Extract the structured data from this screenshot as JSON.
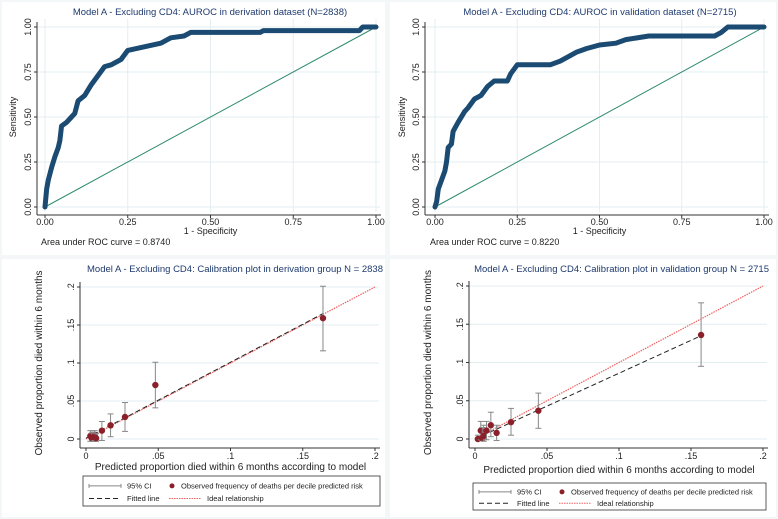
{
  "colors": {
    "roc": "#1b4a72",
    "ref": "#2e8b6e",
    "point": "#8b1f2a",
    "ci": "#888888",
    "fitted": "#222222",
    "ideal": "#f06060",
    "grid": "#e3eef0"
  },
  "chart_data": [
    {
      "type": "line",
      "title": "Model A - Excluding CD4: AUROC in derivation dataset (N=2838)",
      "xlabel": "1 - Specificity",
      "ylabel": "Sensitivity",
      "xlim": [
        0,
        1
      ],
      "ylim": [
        0,
        1
      ],
      "xticks": [
        "0.00",
        "0.25",
        "0.50",
        "0.75",
        "1.00"
      ],
      "yticks": [
        "0.00",
        "0.25",
        "0.50",
        "0.75",
        "1.00"
      ],
      "note": "Area under ROC curve = 0.8740",
      "roc": [
        [
          0,
          0
        ],
        [
          0.005,
          0.1
        ],
        [
          0.01,
          0.15
        ],
        [
          0.02,
          0.22
        ],
        [
          0.03,
          0.28
        ],
        [
          0.04,
          0.33
        ],
        [
          0.045,
          0.37
        ],
        [
          0.05,
          0.45
        ],
        [
          0.065,
          0.47
        ],
        [
          0.08,
          0.5
        ],
        [
          0.09,
          0.52
        ],
        [
          0.1,
          0.59
        ],
        [
          0.12,
          0.62
        ],
        [
          0.14,
          0.68
        ],
        [
          0.16,
          0.73
        ],
        [
          0.18,
          0.78
        ],
        [
          0.2,
          0.79
        ],
        [
          0.23,
          0.82
        ],
        [
          0.25,
          0.87
        ],
        [
          0.3,
          0.89
        ],
        [
          0.35,
          0.91
        ],
        [
          0.38,
          0.94
        ],
        [
          0.42,
          0.95
        ],
        [
          0.44,
          0.97
        ],
        [
          0.65,
          0.97
        ],
        [
          0.66,
          0.98
        ],
        [
          0.95,
          0.98
        ],
        [
          0.96,
          1.0
        ],
        [
          1,
          1
        ]
      ],
      "reference": [
        [
          0,
          0
        ],
        [
          1,
          1
        ]
      ]
    },
    {
      "type": "line",
      "title": "Model A - Excluding CD4: AUROC in validation dataset (N=2715)",
      "xlabel": "1 - Specificity",
      "ylabel": "Sensitivity",
      "xlim": [
        0,
        1
      ],
      "ylim": [
        0,
        1
      ],
      "xticks": [
        "0.00",
        "0.25",
        "0.50",
        "0.75",
        "1.00"
      ],
      "yticks": [
        "0.00",
        "0.25",
        "0.50",
        "0.75",
        "1.00"
      ],
      "note": "Area under ROC curve = 0.8220",
      "roc": [
        [
          0,
          0
        ],
        [
          0.005,
          0.03
        ],
        [
          0.01,
          0.1
        ],
        [
          0.02,
          0.15
        ],
        [
          0.03,
          0.2
        ],
        [
          0.035,
          0.25
        ],
        [
          0.04,
          0.33
        ],
        [
          0.05,
          0.35
        ],
        [
          0.055,
          0.42
        ],
        [
          0.07,
          0.47
        ],
        [
          0.09,
          0.53
        ],
        [
          0.1,
          0.55
        ],
        [
          0.12,
          0.6
        ],
        [
          0.14,
          0.62
        ],
        [
          0.16,
          0.67
        ],
        [
          0.18,
          0.7
        ],
        [
          0.22,
          0.7
        ],
        [
          0.23,
          0.74
        ],
        [
          0.25,
          0.79
        ],
        [
          0.35,
          0.79
        ],
        [
          0.38,
          0.81
        ],
        [
          0.41,
          0.84
        ],
        [
          0.43,
          0.86
        ],
        [
          0.46,
          0.88
        ],
        [
          0.5,
          0.9
        ],
        [
          0.55,
          0.91
        ],
        [
          0.58,
          0.93
        ],
        [
          0.65,
          0.95
        ],
        [
          0.85,
          0.95
        ],
        [
          0.87,
          0.97
        ],
        [
          0.89,
          1.0
        ],
        [
          1,
          1
        ]
      ],
      "reference": [
        [
          0,
          0
        ],
        [
          1,
          1
        ]
      ]
    },
    {
      "type": "scatter",
      "title": "Model A - Excluding CD4: Calibration plot in derivation group N = 2838",
      "xlabel": "Predicted proportion died within 6 months according to model",
      "ylabel": "Observed proportion died within 6 months",
      "xlim": [
        0,
        0.2
      ],
      "ylim": [
        0,
        0.2
      ],
      "xticks": [
        "0",
        ".05",
        ".1",
        ".15",
        ".2"
      ],
      "yticks": [
        "0",
        ".05",
        ".1",
        ".15",
        ".2"
      ],
      "points": [
        {
          "x": 0.003,
          "y": 0.004,
          "lo": -0.003,
          "hi": 0.011
        },
        {
          "x": 0.004,
          "y": 0.001,
          "lo": -0.003,
          "hi": 0.008
        },
        {
          "x": 0.005,
          "y": 0.002,
          "lo": -0.003,
          "hi": 0.009
        },
        {
          "x": 0.006,
          "y": 0.004,
          "lo": -0.002,
          "hi": 0.011
        },
        {
          "x": 0.007,
          "y": 0.001,
          "lo": -0.003,
          "hi": 0.007
        },
        {
          "x": 0.011,
          "y": 0.011,
          "lo": -0.002,
          "hi": 0.023
        },
        {
          "x": 0.017,
          "y": 0.018,
          "lo": 0.003,
          "hi": 0.033
        },
        {
          "x": 0.027,
          "y": 0.029,
          "lo": 0.01,
          "hi": 0.048
        },
        {
          "x": 0.048,
          "y": 0.071,
          "lo": 0.041,
          "hi": 0.101
        },
        {
          "x": 0.164,
          "y": 0.159,
          "lo": 0.116,
          "hi": 0.201
        }
      ],
      "fitted": [
        [
          0,
          0.001
        ],
        [
          0.164,
          0.165
        ]
      ],
      "ideal": [
        [
          0,
          0
        ],
        [
          0.2,
          0.2
        ]
      ],
      "legend": {
        "ci": "95% CI",
        "points": "Observed frequency of deaths per decile predicted risk",
        "fitted": "Fitted line",
        "ideal": "Ideal relationship"
      }
    },
    {
      "type": "scatter",
      "title": "Model A - Excluding CD4: Calibration plot in validation group N = 2715",
      "xlabel": "Predicted proportion died within 6 months according to model",
      "ylabel": "Observed proportion died within 6 months",
      "xlim": [
        0,
        0.2
      ],
      "ylim": [
        0,
        0.2
      ],
      "xticks": [
        "0",
        ".05",
        ".1",
        ".15",
        ".2"
      ],
      "yticks": [
        "0",
        ".05",
        ".1",
        ".15",
        ".2"
      ],
      "points": [
        {
          "x": 0.002,
          "y": 0.0,
          "lo": -0.002,
          "hi": 0.005
        },
        {
          "x": 0.004,
          "y": 0.011,
          "lo": -0.001,
          "hi": 0.023
        },
        {
          "x": 0.005,
          "y": 0.001,
          "lo": -0.002,
          "hi": 0.015
        },
        {
          "x": 0.006,
          "y": 0.004,
          "lo": -0.003,
          "hi": 0.018
        },
        {
          "x": 0.008,
          "y": 0.011,
          "lo": -0.001,
          "hi": 0.023
        },
        {
          "x": 0.011,
          "y": 0.018,
          "lo": 0.003,
          "hi": 0.035
        },
        {
          "x": 0.015,
          "y": 0.008,
          "lo": -0.002,
          "hi": 0.018
        },
        {
          "x": 0.025,
          "y": 0.022,
          "lo": 0.005,
          "hi": 0.04
        },
        {
          "x": 0.044,
          "y": 0.037,
          "lo": 0.014,
          "hi": 0.06
        },
        {
          "x": 0.157,
          "y": 0.136,
          "lo": 0.095,
          "hi": 0.178
        }
      ],
      "fitted": [
        [
          0,
          0
        ],
        [
          0.157,
          0.135
        ]
      ],
      "ideal": [
        [
          0,
          0
        ],
        [
          0.2,
          0.2
        ]
      ],
      "legend": {
        "ci": "95% CI",
        "points": "Observed frequency of deaths per decile predicted risk",
        "fitted": "Fitted line",
        "ideal": "Ideal relationship"
      }
    }
  ]
}
